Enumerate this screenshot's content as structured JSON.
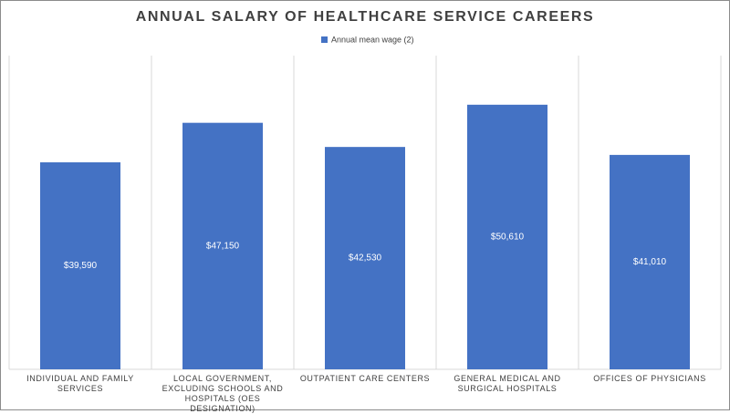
{
  "chart_data": {
    "type": "bar",
    "title": "ANNUAL SALARY OF HEALTHCARE SERVICE CAREERS",
    "categories": [
      "INDIVIDUAL AND FAMILY SERVICES",
      "LOCAL GOVERNMENT, EXCLUDING SCHOOLS AND HOSPITALS (OES DESIGNATION)",
      "OUTPATIENT CARE CENTERS",
      "GENERAL MEDICAL AND SURGICAL HOSPITALS",
      "OFFICES OF PHYSICIANS"
    ],
    "series": [
      {
        "name": "Annual mean wage (2)",
        "color": "#4472c4",
        "values": [
          39590,
          47150,
          42530,
          50610,
          41010
        ],
        "value_labels": [
          "$39,590",
          "$47,150",
          "$42,530",
          "$50,610",
          "$41,010"
        ]
      }
    ],
    "ylim": [
      0,
      60000
    ]
  }
}
